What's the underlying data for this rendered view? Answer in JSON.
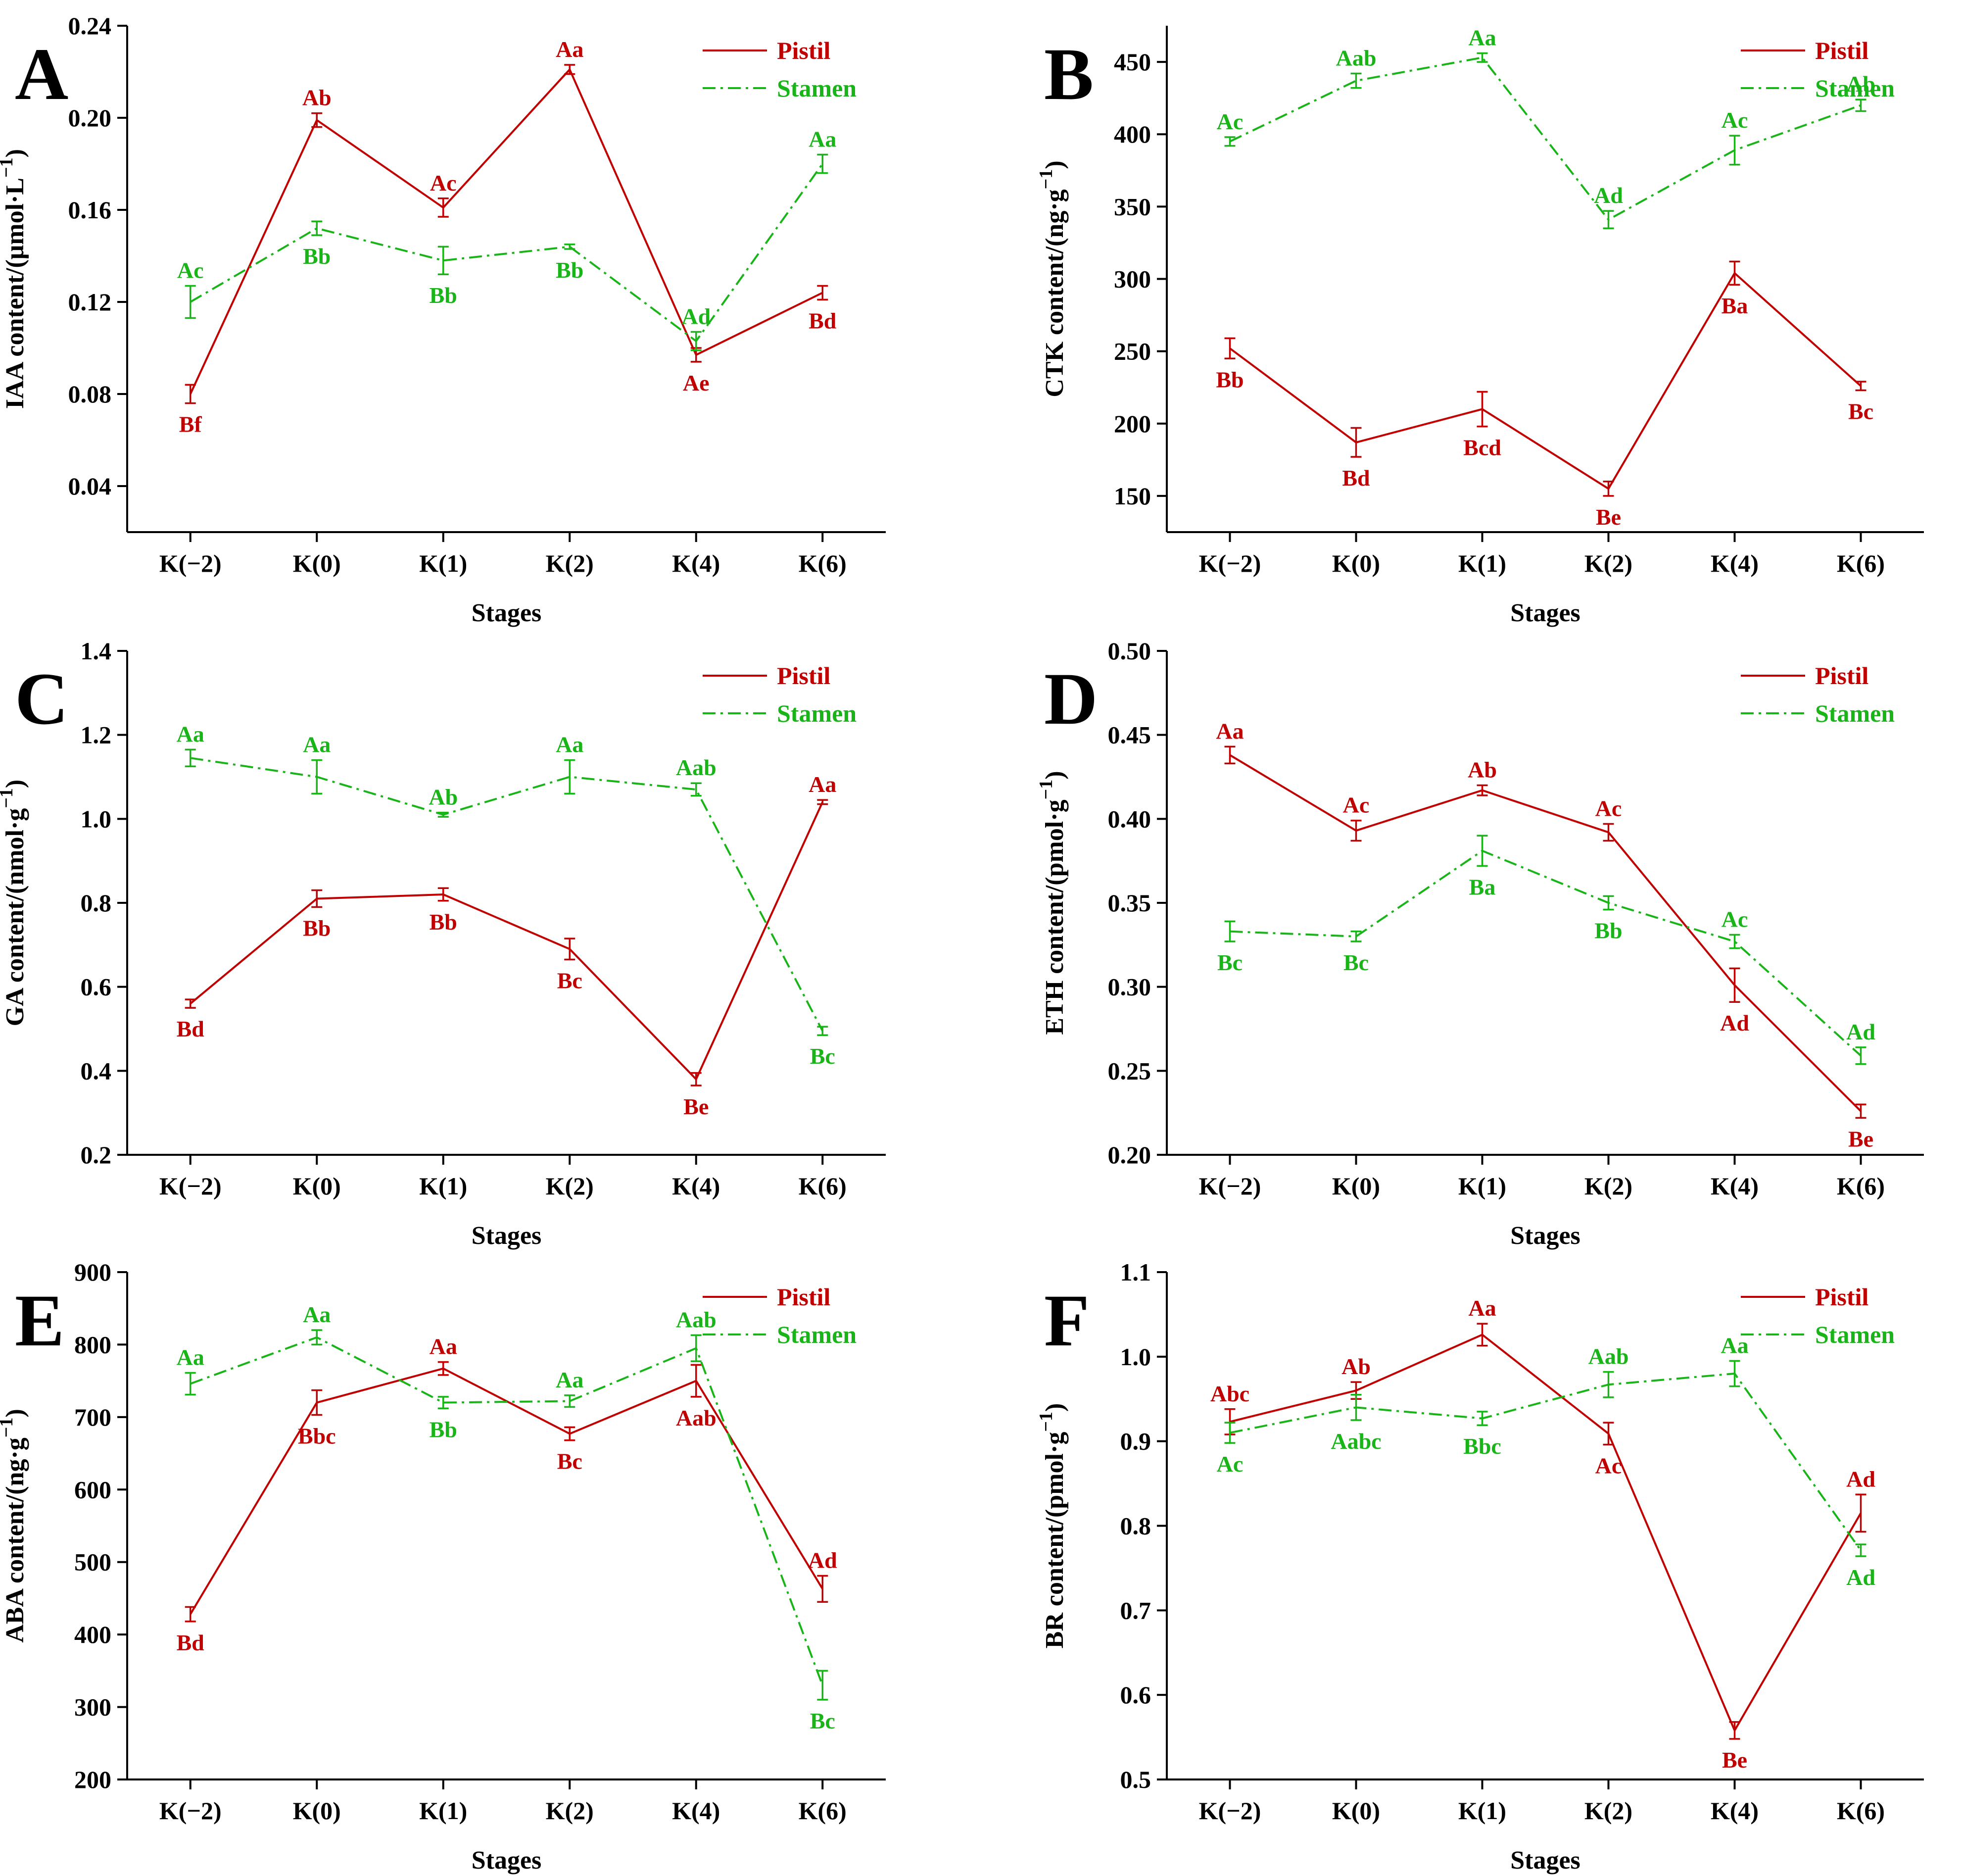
{
  "figure": {
    "categories": [
      "K(−2)",
      "K(0)",
      "K(1)",
      "K(2)",
      "K(4)",
      "K(6)"
    ],
    "xlabel": "Stages",
    "colors": {
      "pistil": "#c00000",
      "stamen": "#18b418",
      "axis": "#000000"
    }
  },
  "chart_data": [
    {
      "type": "line",
      "panel": "A",
      "ylabel": "IAA content/(μmol·L",
      "ylabel_sup": "−1",
      "ylabel_close": ")",
      "ylim": [
        0.02,
        0.24
      ],
      "yticks": [
        "0.04",
        "0.08",
        "0.12",
        "0.16",
        "0.20",
        "0.24"
      ],
      "legend_position": "top-right",
      "series": [
        {
          "name": "Pistil",
          "values": [
            0.08,
            0.199,
            0.161,
            0.221,
            0.097,
            0.124
          ],
          "errors": [
            0.004,
            0.003,
            0.004,
            0.002,
            0.003,
            0.003
          ],
          "labels": [
            "Bf",
            "Ab",
            "Ac",
            "Aa",
            "Ae",
            "Bd"
          ]
        },
        {
          "name": "Stamen",
          "values": [
            0.12,
            0.152,
            0.138,
            0.144,
            0.103,
            0.18
          ],
          "errors": [
            0.007,
            0.003,
            0.006,
            0.001,
            0.004,
            0.004
          ],
          "labels": [
            "Ac",
            "Bb",
            "Bb",
            "Bb",
            "Ad",
            "Aa"
          ]
        }
      ]
    },
    {
      "type": "line",
      "panel": "B",
      "ylabel": "CTK content/(ng·g",
      "ylabel_sup": "−1",
      "ylabel_close": ")",
      "ylim": [
        125,
        475
      ],
      "yticks": [
        "150",
        "200",
        "250",
        "300",
        "350",
        "400",
        "450"
      ],
      "legend_position": "top-right",
      "series": [
        {
          "name": "Pistil",
          "values": [
            252,
            187,
            210,
            155,
            304,
            226
          ],
          "errors": [
            7,
            10,
            12,
            5,
            8,
            3
          ],
          "labels": [
            "Bb",
            "Bd",
            "Bcd",
            "Be",
            "Ba",
            "Bc"
          ]
        },
        {
          "name": "Stamen",
          "values": [
            395,
            437,
            453,
            341,
            389,
            420
          ],
          "errors": [
            3,
            5,
            3,
            6,
            10,
            4
          ],
          "labels": [
            "Ac",
            "Aab",
            "Aa",
            "Ad",
            "Ac",
            "Ab"
          ]
        }
      ]
    },
    {
      "type": "line",
      "panel": "C",
      "ylabel": "GA content/(nmol·g",
      "ylabel_sup": "−1",
      "ylabel_close": ")",
      "ylim": [
        0.2,
        1.4
      ],
      "yticks": [
        "0.2",
        "0.4",
        "0.6",
        "0.8",
        "1.0",
        "1.2",
        "1.4"
      ],
      "legend_position": "top-right",
      "series": [
        {
          "name": "Pistil",
          "values": [
            0.56,
            0.81,
            0.82,
            0.69,
            0.38,
            1.04
          ],
          "errors": [
            0.01,
            0.02,
            0.015,
            0.025,
            0.015,
            0.005
          ],
          "labels": [
            "Bd",
            "Bb",
            "Bb",
            "Bc",
            "Be",
            "Aa"
          ]
        },
        {
          "name": "Stamen",
          "values": [
            1.145,
            1.1,
            1.01,
            1.1,
            1.07,
            0.495
          ],
          "errors": [
            0.02,
            0.04,
            0.005,
            0.04,
            0.015,
            0.01
          ],
          "labels": [
            "Aa",
            "Aa",
            "Ab",
            "Aa",
            "Aab",
            "Bc"
          ]
        }
      ]
    },
    {
      "type": "line",
      "panel": "D",
      "ylabel": "ETH content/(pmol·g",
      "ylabel_sup": "−1",
      "ylabel_close": ")",
      "ylim": [
        0.2,
        0.5
      ],
      "yticks": [
        "0.20",
        "0.25",
        "0.30",
        "0.35",
        "0.40",
        "0.45",
        "0.50"
      ],
      "legend_position": "top-right",
      "series": [
        {
          "name": "Pistil",
          "values": [
            0.438,
            0.393,
            0.417,
            0.392,
            0.301,
            0.226
          ],
          "errors": [
            0.005,
            0.006,
            0.003,
            0.005,
            0.01,
            0.004
          ],
          "labels": [
            "Aa",
            "Ac",
            "Ab",
            "Ac",
            "Ad",
            "Be"
          ]
        },
        {
          "name": "Stamen",
          "values": [
            0.333,
            0.33,
            0.381,
            0.35,
            0.327,
            0.259
          ],
          "errors": [
            0.006,
            0.003,
            0.009,
            0.004,
            0.004,
            0.005
          ],
          "labels": [
            "Bc",
            "Bc",
            "Ba",
            "Bb",
            "Ac",
            "Ad"
          ]
        }
      ]
    },
    {
      "type": "line",
      "panel": "E",
      "ylabel": "ABA content/(ng·g",
      "ylabel_sup": "−1",
      "ylabel_close": ")",
      "ylim": [
        200,
        900
      ],
      "yticks": [
        "200",
        "300",
        "400",
        "500",
        "600",
        "700",
        "800",
        "900"
      ],
      "legend_position": "top-right",
      "series": [
        {
          "name": "Pistil",
          "values": [
            428,
            720,
            767,
            677,
            750,
            463
          ],
          "errors": [
            10,
            17,
            9,
            9,
            22,
            18
          ],
          "labels": [
            "Bd",
            "Bbc",
            "Aa",
            "Bc",
            "Aab",
            "Ad"
          ]
        },
        {
          "name": "Stamen",
          "values": [
            746,
            810,
            720,
            722,
            795,
            330
          ],
          "errors": [
            15,
            10,
            8,
            8,
            18,
            20
          ],
          "labels": [
            "Aa",
            "Aa",
            "Bb",
            "Aa",
            "Aab",
            "Bc"
          ]
        }
      ]
    },
    {
      "type": "line",
      "panel": "F",
      "ylabel": "BR content/(pmol·g",
      "ylabel_sup": "−1",
      "ylabel_close": ")",
      "ylim": [
        0.5,
        1.1
      ],
      "yticks": [
        "0.5",
        "0.6",
        "0.7",
        "0.8",
        "0.9",
        "1.0",
        "1.1"
      ],
      "legend_position": "top-right",
      "series": [
        {
          "name": "Pistil",
          "values": [
            0.923,
            0.96,
            1.026,
            0.909,
            0.558,
            0.815
          ],
          "errors": [
            0.015,
            0.01,
            0.013,
            0.013,
            0.01,
            0.022
          ],
          "labels": [
            "Abc",
            "Ab",
            "Aa",
            "Ac",
            "Be",
            "Ad"
          ]
        },
        {
          "name": "Stamen",
          "values": [
            0.91,
            0.94,
            0.927,
            0.967,
            0.98,
            0.771
          ],
          "errors": [
            0.012,
            0.015,
            0.008,
            0.015,
            0.015,
            0.007
          ],
          "labels": [
            "Ac",
            "Aabc",
            "Bbc",
            "Aab",
            "Aa",
            "Ad"
          ]
        }
      ]
    }
  ]
}
